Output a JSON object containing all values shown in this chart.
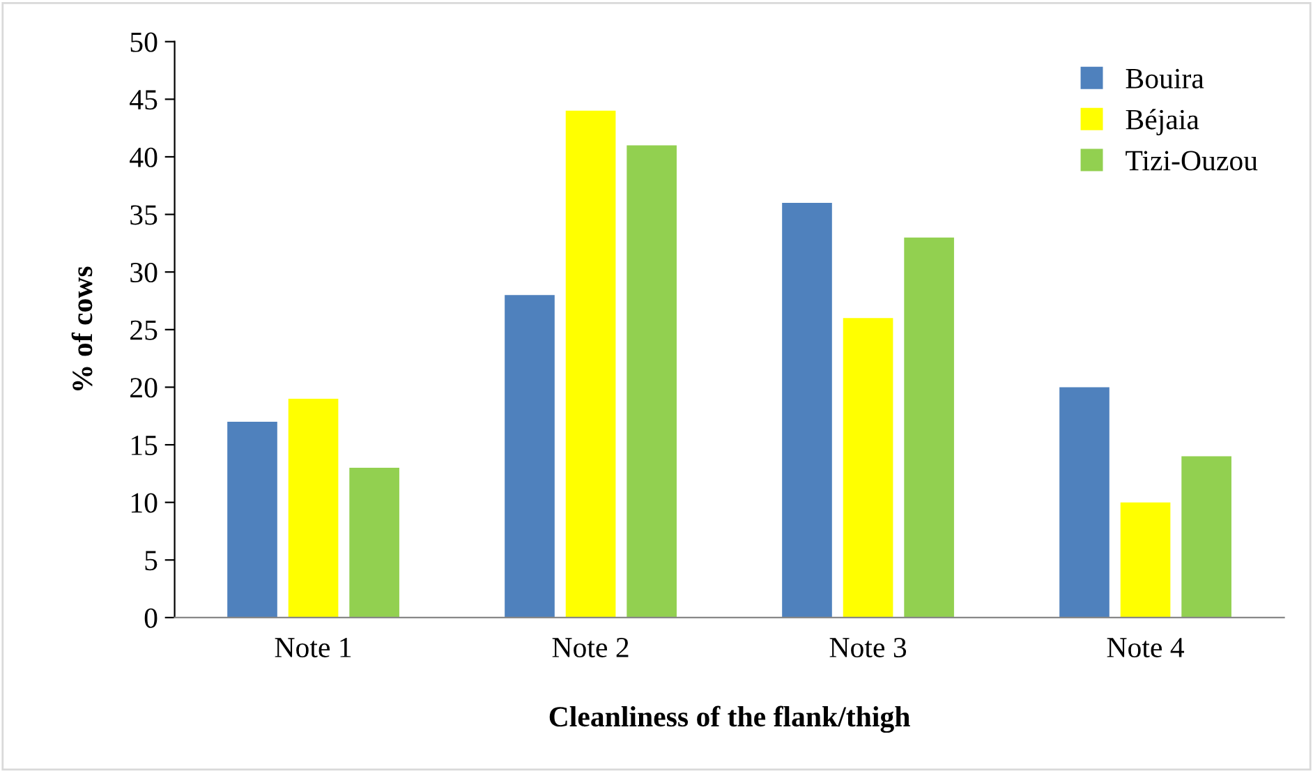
{
  "chart_data": {
    "type": "bar",
    "xlabel": "Cleanliness of the flank/thigh",
    "ylabel": "% of cows",
    "categories": [
      "Note 1",
      "Note 2",
      "Note 3",
      "Note 4"
    ],
    "series": [
      {
        "name": "Bouira",
        "color": "#4f81bd",
        "values": [
          17,
          28,
          36,
          20
        ]
      },
      {
        "name": "Béjaia",
        "color": "#ffff00",
        "values": [
          19,
          44,
          26,
          10
        ]
      },
      {
        "name": "Tizi-Ouzou",
        "color": "#92d050",
        "values": [
          13,
          41,
          33,
          14
        ]
      }
    ],
    "ylim": [
      0,
      50
    ],
    "yticks": [
      0,
      5,
      10,
      15,
      20,
      25,
      30,
      35,
      40,
      45,
      50
    ],
    "grid": false,
    "legend": "top right"
  }
}
